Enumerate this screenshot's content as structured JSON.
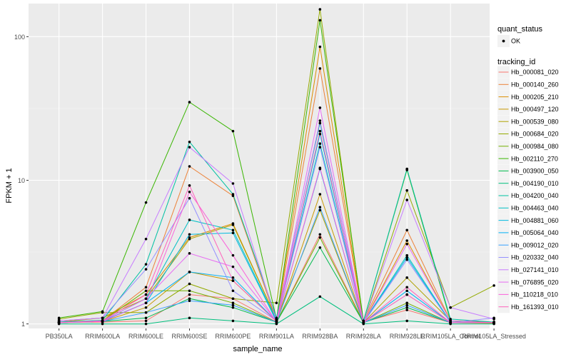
{
  "chart_data": {
    "type": "line",
    "xlabel": "sample_name",
    "ylabel": "FPKM + 1",
    "y_scale": "log10",
    "ylim": [
      0.93,
      170
    ],
    "y_ticks": [
      1,
      10,
      100
    ],
    "y_tick_labels": [
      "1",
      "10",
      "100"
    ],
    "grid": true,
    "legend_position": "right",
    "categories": [
      "PB350LA",
      "RRIM600LA",
      "RRIM600LE",
      "RRIM600SE",
      "RRIM600PE",
      "RRIM901LA",
      "RRIM928BA",
      "RRIM928LA",
      "RRIM928LE",
      "RRIM105LA_Control",
      "RRIM105LA_Stressed"
    ],
    "quant_legend": {
      "title": "quant_status",
      "items": [
        "OK"
      ]
    },
    "tracking_legend_title": "tracking_id",
    "series": [
      {
        "name": "Hb_000081_020",
        "color": "#F8766D",
        "values": [
          1.02,
          1.03,
          1.05,
          1.6,
          1.5,
          1.03,
          4.2,
          1.03,
          1.25,
          1.02,
          1.02
        ]
      },
      {
        "name": "Hb_000140_260",
        "color": "#EC8239",
        "values": [
          1.02,
          1.05,
          1.8,
          12.5,
          7.8,
          1.05,
          60,
          1.05,
          4.5,
          1.05,
          1.03
        ]
      },
      {
        "name": "Hb_000205_210",
        "color": "#DB8E00",
        "values": [
          1.05,
          1.1,
          1.6,
          4.0,
          5.0,
          1.08,
          85,
          1.03,
          3.8,
          1.05,
          1.02
        ]
      },
      {
        "name": "Hb_000497_120",
        "color": "#C79800",
        "values": [
          1.02,
          1.04,
          1.3,
          2.3,
          2.0,
          1.04,
          8.0,
          1.02,
          1.6,
          1.02,
          1.01
        ]
      },
      {
        "name": "Hb_000539_080",
        "color": "#AFA100",
        "values": [
          1.03,
          1.1,
          1.5,
          3.9,
          4.9,
          1.08,
          6.2,
          1.02,
          2.1,
          1.05,
          1.02
        ]
      },
      {
        "name": "Hb_000684_020",
        "color": "#93AA00",
        "values": [
          1.08,
          1.2,
          1.2,
          1.9,
          1.5,
          1.4,
          155,
          1.02,
          8.5,
          1.3,
          1.85
        ]
      },
      {
        "name": "Hb_000984_080",
        "color": "#72B000",
        "values": [
          1.03,
          1.05,
          1.7,
          1.7,
          1.4,
          1.03,
          4.0,
          1.02,
          1.4,
          1.02,
          1.02
        ]
      },
      {
        "name": "Hb_002110_270",
        "color": "#39B600",
        "values": [
          1.1,
          1.22,
          7.0,
          35,
          22,
          1.08,
          130,
          1.05,
          11.8,
          1.05,
          1.03
        ]
      },
      {
        "name": "Hb_003900_050",
        "color": "#00BB4E",
        "values": [
          1.02,
          1.04,
          1.1,
          1.5,
          1.3,
          1.03,
          3.4,
          1.02,
          1.3,
          1.02,
          1.02
        ]
      },
      {
        "name": "Hb_004190_010",
        "color": "#00BF7D",
        "values": [
          1.0,
          1.0,
          1.0,
          1.1,
          1.05,
          1.0,
          1.55,
          1.0,
          1.05,
          1.0,
          1.0
        ]
      },
      {
        "name": "Hb_004200_040",
        "color": "#00C1A3",
        "values": [
          1.03,
          1.06,
          2.6,
          18.5,
          8.0,
          1.1,
          25,
          1.05,
          12,
          1.08,
          1.03
        ]
      },
      {
        "name": "Hb_004463_040",
        "color": "#00BFC4",
        "values": [
          1.02,
          1.05,
          1.5,
          5.3,
          4.5,
          1.06,
          18,
          1.03,
          3.0,
          1.03,
          1.02
        ]
      },
      {
        "name": "Hb_004881_060",
        "color": "#00BAE0",
        "values": [
          1.02,
          1.04,
          1.4,
          4.2,
          4.3,
          1.04,
          21,
          1.02,
          2.9,
          1.02,
          1.02
        ]
      },
      {
        "name": "Hb_005064_040",
        "color": "#00B0F6",
        "values": [
          1.03,
          1.05,
          1.4,
          2.3,
          2.1,
          1.04,
          12,
          1.02,
          1.7,
          1.02,
          1.02
        ]
      },
      {
        "name": "Hb_009012_020",
        "color": "#35A2FF",
        "values": [
          1.02,
          1.04,
          1.2,
          1.45,
          1.35,
          1.03,
          6.5,
          1.02,
          1.35,
          1.02,
          1.02
        ]
      },
      {
        "name": "Hb_020332_040",
        "color": "#9590FF",
        "values": [
          1.05,
          1.1,
          2.4,
          7.5,
          1.7,
          1.05,
          17,
          1.02,
          2.8,
          1.02,
          1.1
        ]
      },
      {
        "name": "Hb_027141_010",
        "color": "#C77CFF",
        "values": [
          1.05,
          1.1,
          3.9,
          17,
          9.5,
          1.05,
          26,
          1.02,
          7.3,
          1.3,
          1.08
        ]
      },
      {
        "name": "Hb_076895_020",
        "color": "#E76BF3",
        "values": [
          1.02,
          1.05,
          1.5,
          3.1,
          2.5,
          1.04,
          32,
          1.02,
          3.6,
          1.05,
          1.02
        ]
      },
      {
        "name": "Hb_110218_010",
        "color": "#FA62DB",
        "values": [
          1.02,
          1.04,
          1.4,
          8.3,
          3.0,
          1.03,
          12.2,
          1.02,
          1.6,
          1.02,
          1.02
        ]
      },
      {
        "name": "Hb_161393_010",
        "color": "#FF62BC",
        "values": [
          1.02,
          1.05,
          1.6,
          9.2,
          2.0,
          1.04,
          22,
          1.02,
          1.8,
          1.02,
          1.02
        ]
      }
    ]
  }
}
